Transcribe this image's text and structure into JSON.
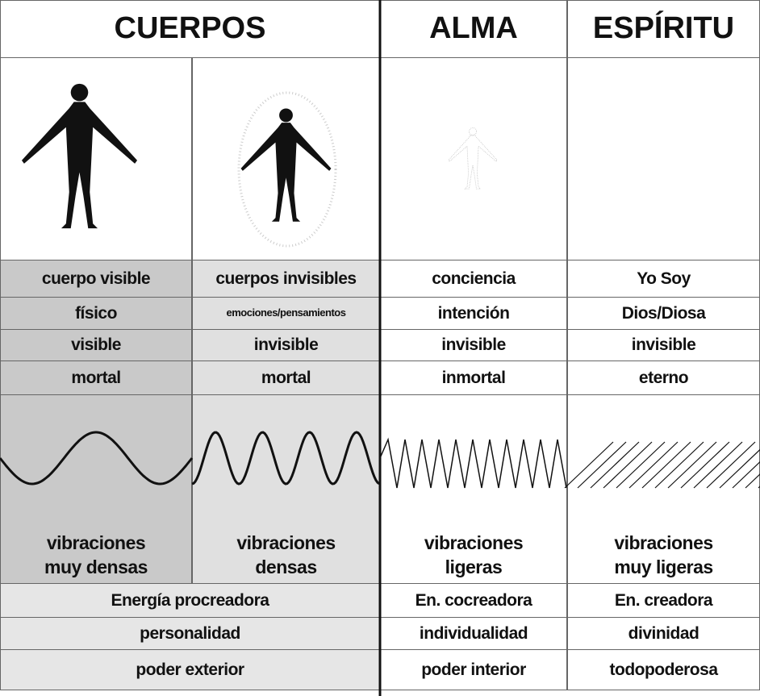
{
  "header": {
    "cuerpos": "CUERPOS",
    "alma": "ALMA",
    "espiritu": "ESPÍRITU"
  },
  "table": {
    "rows": [
      [
        "cuerpo visible",
        "cuerpos invisibles",
        "conciencia",
        "Yo Soy"
      ],
      [
        "físico",
        "emociones/pensamientos",
        "intención",
        "Dios/Diosa"
      ],
      [
        "visible",
        "invisible",
        "invisible",
        "invisible"
      ],
      [
        "mortal",
        "mortal",
        "inmortal",
        "eterno"
      ]
    ],
    "vibrations": [
      [
        "vibraciones",
        "muy densas"
      ],
      [
        "vibraciones",
        "densas"
      ],
      [
        "vibraciones",
        "ligeras"
      ],
      [
        "vibraciones",
        "muy ligeras"
      ]
    ],
    "bottom_rows": [
      [
        "Energía procreadora",
        "En. cocreadora",
        "En. creadora"
      ],
      [
        "personalidad",
        "individualidad",
        "divinidad"
      ],
      [
        "poder exterior",
        "poder interior",
        "todopoderosa"
      ]
    ]
  }
}
